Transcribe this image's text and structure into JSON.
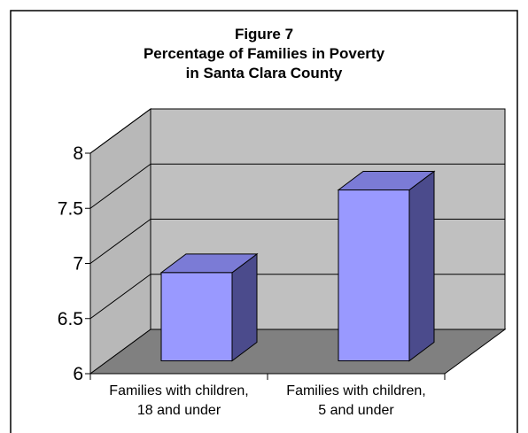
{
  "chart_data": {
    "type": "bar",
    "title": "Figure 7",
    "subtitle_lines": [
      "Percentage of Families in Poverty",
      "in Santa Clara County"
    ],
    "categories": [
      [
        "Families with children,",
        "18 and under"
      ],
      [
        "Families with children,",
        "5 and under"
      ]
    ],
    "values": [
      6.8,
      7.55
    ],
    "ylim": [
      6,
      8
    ],
    "yticks": [
      "6",
      "6.5",
      "7",
      "7.5",
      "8"
    ],
    "xlabel": "",
    "ylabel": "",
    "grid": true,
    "legend": "none",
    "colors": {
      "bar_front": "#9999FF",
      "bar_top": "#7B7BD6",
      "bar_side": "#4B4B8C",
      "back_wall": "#C0C0C0",
      "side_wall": "#B8B8B8",
      "floor": "#808080"
    }
  }
}
